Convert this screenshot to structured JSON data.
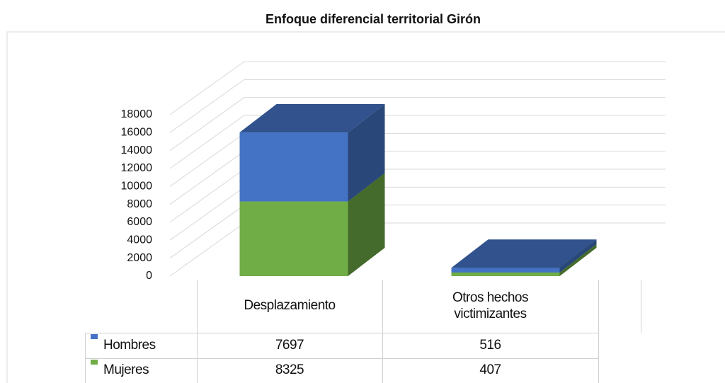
{
  "chart_data": {
    "type": "bar3d_stacked",
    "title": "Enfoque diferencial territorial Girón",
    "categories": [
      "Desplazamiento",
      "Otros hechos victimizantes"
    ],
    "series": [
      {
        "name": "Hombres",
        "color": "#4472c4",
        "values": [
          7697,
          516
        ]
      },
      {
        "name": "Mujeres",
        "color": "#70ad47",
        "values": [
          8325,
          407
        ]
      }
    ],
    "stack_order": [
      "Mujeres",
      "Hombres"
    ],
    "ylim": [
      0,
      18000
    ],
    "yticks": [
      0,
      2000,
      4000,
      6000,
      8000,
      10000,
      12000,
      14000,
      16000,
      18000
    ],
    "grid": true,
    "data_table": true
  }
}
